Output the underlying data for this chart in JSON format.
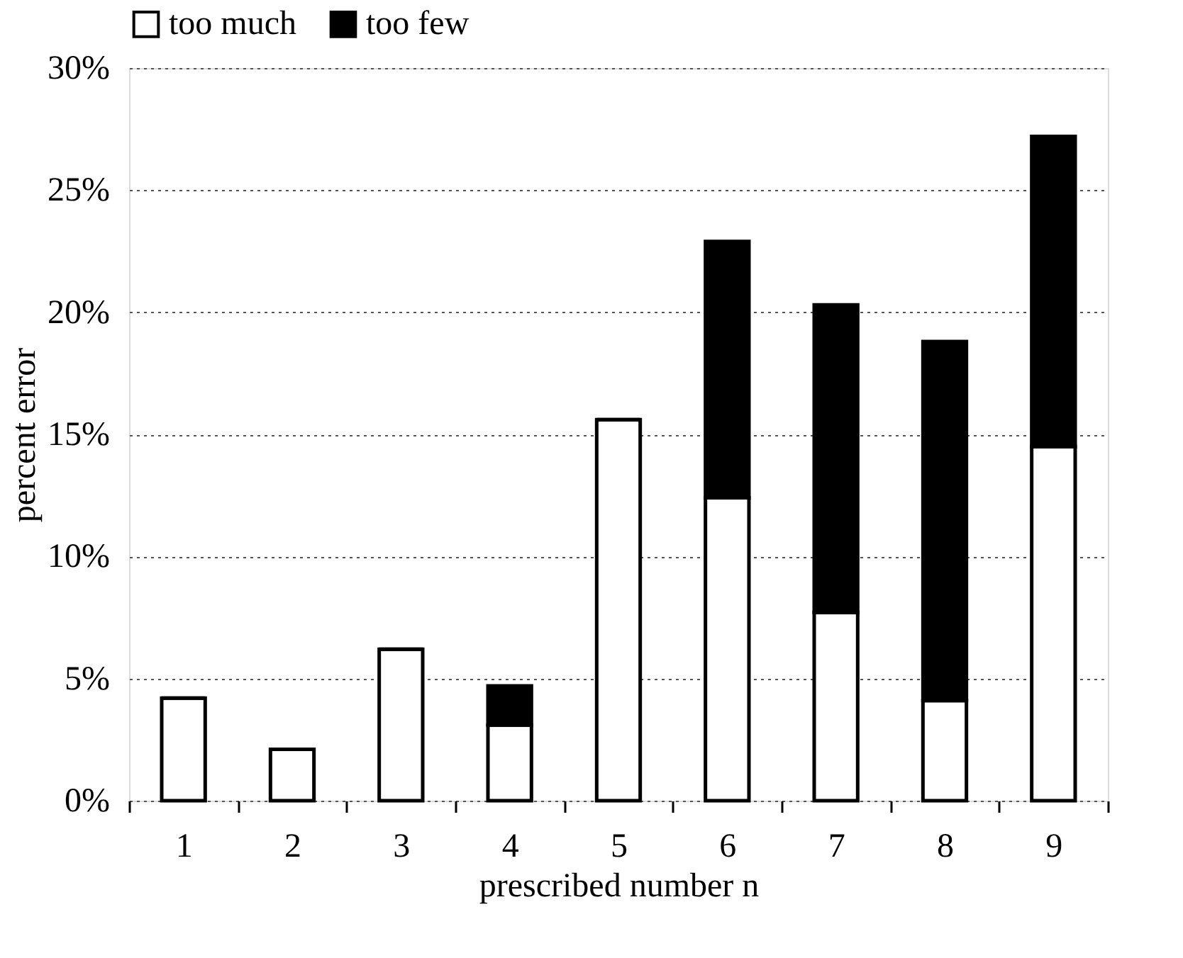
{
  "chart_data": {
    "type": "bar",
    "stacked": true,
    "xlabel": "prescribed number n",
    "ylabel": "percent error",
    "categories": [
      "1",
      "2",
      "3",
      "4",
      "5",
      "6",
      "7",
      "8",
      "9"
    ],
    "series": [
      {
        "name": "too much",
        "color": "#ffffff",
        "values": [
          4.2,
          2.1,
          6.2,
          3.1,
          15.6,
          12.4,
          7.7,
          4.1,
          14.5
        ]
      },
      {
        "name": "too few",
        "color": "#000000",
        "values": [
          0,
          0,
          0,
          1.6,
          0,
          10.5,
          12.6,
          14.7,
          12.7
        ]
      }
    ],
    "ylim": [
      0,
      30
    ],
    "yticks": [
      {
        "value": 0,
        "label": "0%"
      },
      {
        "value": 5,
        "label": "5%"
      },
      {
        "value": 10,
        "label": "10%"
      },
      {
        "value": 15,
        "label": "15%"
      },
      {
        "value": 20,
        "label": "20%"
      },
      {
        "value": 25,
        "label": "25%"
      },
      {
        "value": 30,
        "label": "30%"
      }
    ],
    "grid": "y",
    "legend": "top"
  }
}
